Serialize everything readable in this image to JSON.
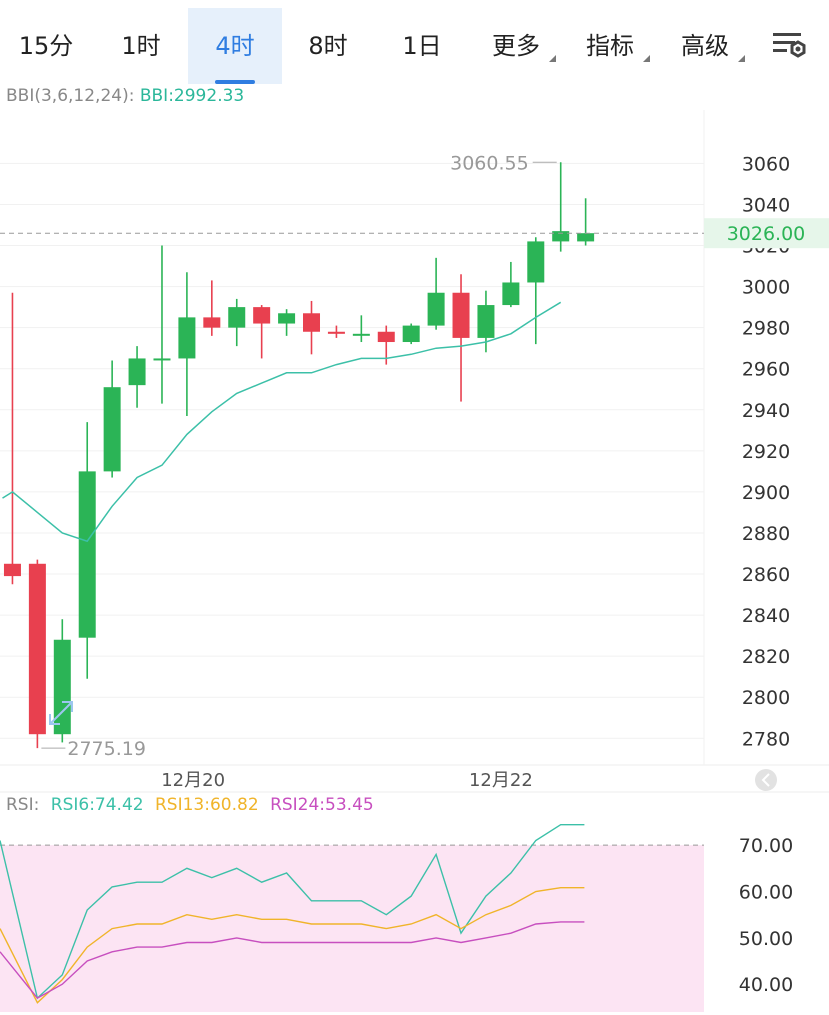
{
  "tabs": [
    {
      "id": "m15",
      "label": "15分",
      "active": false
    },
    {
      "id": "h1",
      "label": "1时",
      "active": false
    },
    {
      "id": "h4",
      "label": "4时",
      "active": true
    },
    {
      "id": "h8",
      "label": "8时",
      "active": false
    },
    {
      "id": "d1",
      "label": "1日",
      "active": false
    }
  ],
  "menus": [
    {
      "id": "more",
      "label": "更多"
    },
    {
      "id": "indicators",
      "label": "指标"
    },
    {
      "id": "advanced",
      "label": "高级"
    }
  ],
  "settings_icon": "chart-settings-icon",
  "bbi_legend": {
    "label": "BBI(3,6,12,24):",
    "value": "BBI:2992.33"
  },
  "rsi_legend": {
    "label": "RSI:",
    "rsi6": "RSI6:74.42",
    "rsi13": "RSI13:60.82",
    "rsi24": "RSI24:53.45"
  },
  "colors": {
    "up": "#2bb456",
    "down": "#e8404f",
    "bbi": "#3cc0a8",
    "rsi6": "#3cc0a8",
    "rsi13": "#f0b42a",
    "rsi24": "#c74fbf",
    "rsi_band": "#fce4f3",
    "accent": "#2f7de1"
  },
  "chart_data": [
    {
      "type": "candlestick",
      "title": "",
      "y_ticks": [
        "2780",
        "2800",
        "2820",
        "2840",
        "2860",
        "2880",
        "2900",
        "2920",
        "2940",
        "2960",
        "2980",
        "3000",
        "3020",
        "3040",
        "3060"
      ],
      "ylim": [
        2767,
        3086
      ],
      "x_labels": [
        {
          "text": "12月20",
          "index": 7.25
        },
        {
          "text": "12月22",
          "index": 19.6
        }
      ],
      "x_index_range": [
        -0.5,
        27.75
      ],
      "current_price": "3026.00",
      "current_price_value": 3026,
      "max_label": "3060.55",
      "max_value": 3060.55,
      "max_index": 22,
      "min_label": "2775.19",
      "min_value": 2775.19,
      "min_index": 1,
      "candles": [
        {
          "o": 2865,
          "h": 2997,
          "l": 2855,
          "c": 2859
        },
        {
          "o": 2865,
          "h": 2867,
          "l": 2775.19,
          "c": 2782
        },
        {
          "o": 2782,
          "h": 2838,
          "l": 2778,
          "c": 2828
        },
        {
          "o": 2829,
          "h": 2934,
          "l": 2809,
          "c": 2910
        },
        {
          "o": 2910,
          "h": 2964,
          "l": 2907,
          "c": 2951
        },
        {
          "o": 2952,
          "h": 2971,
          "l": 2941,
          "c": 2965
        },
        {
          "o": 2965,
          "h": 3020,
          "l": 2943,
          "c": 2965
        },
        {
          "o": 2965,
          "h": 3007,
          "l": 2937,
          "c": 2985
        },
        {
          "o": 2985,
          "h": 3003,
          "l": 2976,
          "c": 2980
        },
        {
          "o": 2980,
          "h": 2994,
          "l": 2971,
          "c": 2990
        },
        {
          "o": 2990,
          "h": 2991,
          "l": 2965,
          "c": 2982
        },
        {
          "o": 2982,
          "h": 2989,
          "l": 2976,
          "c": 2987
        },
        {
          "o": 2987,
          "h": 2993,
          "l": 2967,
          "c": 2978
        },
        {
          "o": 2978,
          "h": 2981,
          "l": 2975,
          "c": 2977
        },
        {
          "o": 2977,
          "h": 2986,
          "l": 2973,
          "c": 2977
        },
        {
          "o": 2978,
          "h": 2981,
          "l": 2962,
          "c": 2973
        },
        {
          "o": 2973,
          "h": 2982,
          "l": 2972,
          "c": 2981
        },
        {
          "o": 2981,
          "h": 3014,
          "l": 2979,
          "c": 2997
        },
        {
          "o": 2997,
          "h": 3006,
          "l": 2944,
          "c": 2975
        },
        {
          "o": 2975,
          "h": 2998,
          "l": 2968,
          "c": 2991
        },
        {
          "o": 2991,
          "h": 3012,
          "l": 2990,
          "c": 3002
        },
        {
          "o": 3002,
          "h": 3024,
          "l": 2972,
          "c": 3022
        },
        {
          "o": 3022,
          "h": 3060.55,
          "l": 3017,
          "c": 3027
        },
        {
          "o": 3022,
          "h": 3043,
          "l": 3020,
          "c": 3026
        }
      ],
      "bbi": [
        {
          "i": -0.4,
          "v": 2897
        },
        {
          "i": 0,
          "v": 2900
        },
        {
          "i": 1,
          "v": 2890
        },
        {
          "i": 2,
          "v": 2880
        },
        {
          "i": 3,
          "v": 2876
        },
        {
          "i": 4,
          "v": 2893
        },
        {
          "i": 5,
          "v": 2907
        },
        {
          "i": 6,
          "v": 2913
        },
        {
          "i": 7,
          "v": 2928
        },
        {
          "i": 8,
          "v": 2939
        },
        {
          "i": 9,
          "v": 2948
        },
        {
          "i": 10,
          "v": 2953
        },
        {
          "i": 11,
          "v": 2958
        },
        {
          "i": 12,
          "v": 2958
        },
        {
          "i": 13,
          "v": 2962
        },
        {
          "i": 14,
          "v": 2965
        },
        {
          "i": 15,
          "v": 2965
        },
        {
          "i": 16,
          "v": 2967
        },
        {
          "i": 17,
          "v": 2970
        },
        {
          "i": 18,
          "v": 2971
        },
        {
          "i": 19,
          "v": 2973
        },
        {
          "i": 20,
          "v": 2977
        },
        {
          "i": 21,
          "v": 2985
        },
        {
          "i": 22,
          "v": 2992.33
        }
      ]
    },
    {
      "type": "line",
      "title": "",
      "y_ticks": [
        "40.00",
        "50.00",
        "60.00",
        "70.00"
      ],
      "ylim": [
        34,
        75
      ],
      "overbought": 70,
      "series": [
        {
          "name": "RSI6",
          "values": [
            71,
            37,
            42,
            56,
            61,
            62,
            62,
            65,
            63,
            65,
            62,
            64,
            58,
            58,
            58,
            55,
            59,
            68,
            51,
            59,
            64,
            71,
            74.42,
            74.42
          ]
        },
        {
          "name": "RSI13",
          "values": [
            52,
            36,
            41,
            48,
            52,
            53,
            53,
            55,
            54,
            55,
            54,
            54,
            53,
            53,
            53,
            52,
            53,
            55,
            52,
            55,
            57,
            60,
            60.82,
            60.82
          ]
        },
        {
          "name": "RSI24",
          "values": [
            47,
            37,
            40,
            45,
            47,
            48,
            48,
            49,
            49,
            50,
            49,
            49,
            49,
            49,
            49,
            49,
            49,
            50,
            49,
            50,
            51,
            53,
            53.45,
            53.45
          ]
        }
      ]
    }
  ]
}
